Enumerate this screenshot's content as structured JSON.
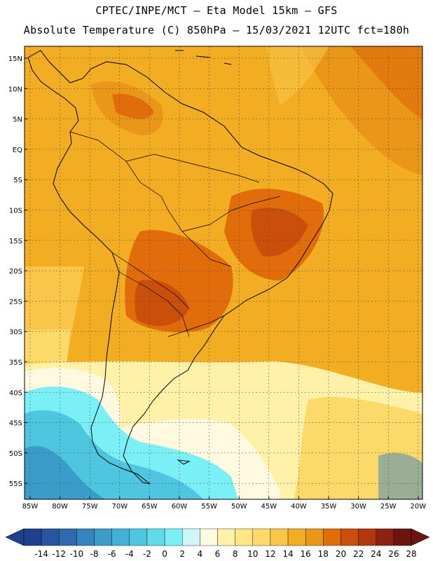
{
  "header": {
    "title_line1": "CPTEC/INPE/MCT –  Eta Model 15km – GFS",
    "title_line2": "Absolute Temperature (C) 850hPa – 15/03/2021 12UTC fct=180h"
  },
  "axes": {
    "lat_labels": [
      "15N",
      "10N",
      "5N",
      "EQ",
      "5S",
      "10S",
      "15S",
      "20S",
      "25S",
      "30S",
      "35S",
      "40S",
      "45S",
      "50S",
      "55S"
    ],
    "lon_labels": [
      "85W",
      "80W",
      "75W",
      "70W",
      "65W",
      "60W",
      "55W",
      "50W",
      "45W",
      "40W",
      "35W",
      "30W",
      "25W",
      "20W"
    ]
  },
  "colorbar": {
    "labels": [
      "-14",
      "-12",
      "-10",
      "-8",
      "-6",
      "-4",
      "-2",
      "0",
      "2",
      "4",
      "6",
      "8",
      "10",
      "12",
      "14",
      "16",
      "18",
      "20",
      "22",
      "24",
      "26",
      "28"
    ],
    "colors": [
      "#1f3f8f",
      "#29549f",
      "#2f6aae",
      "#3584bf",
      "#3a9cc9",
      "#43b1d5",
      "#4ec6e0",
      "#60dbea",
      "#7aeff6",
      "#cff7fb",
      "#fff9e0",
      "#fff2a8",
      "#ffe788",
      "#fdd96a",
      "#f9c64a",
      "#f2ad22",
      "#ea9618",
      "#e06d0a",
      "#c94f0a",
      "#b0380c",
      "#8c2310",
      "#6b1410"
    ]
  },
  "map_colors": {
    "ocean_warm": "#f2ad22",
    "land_base": "#f2ad22",
    "hot": "#e06d0a",
    "very_hot": "#c94f0a",
    "warm_mid": "#f9c64a",
    "mild": "#fdd96a",
    "pale": "#fff2a8",
    "cream": "#fff9e0",
    "cool_cyan": "#7aeff6",
    "cool_blue": "#4ec6e0",
    "cold": "#3584bf",
    "colder": "#29549f"
  }
}
